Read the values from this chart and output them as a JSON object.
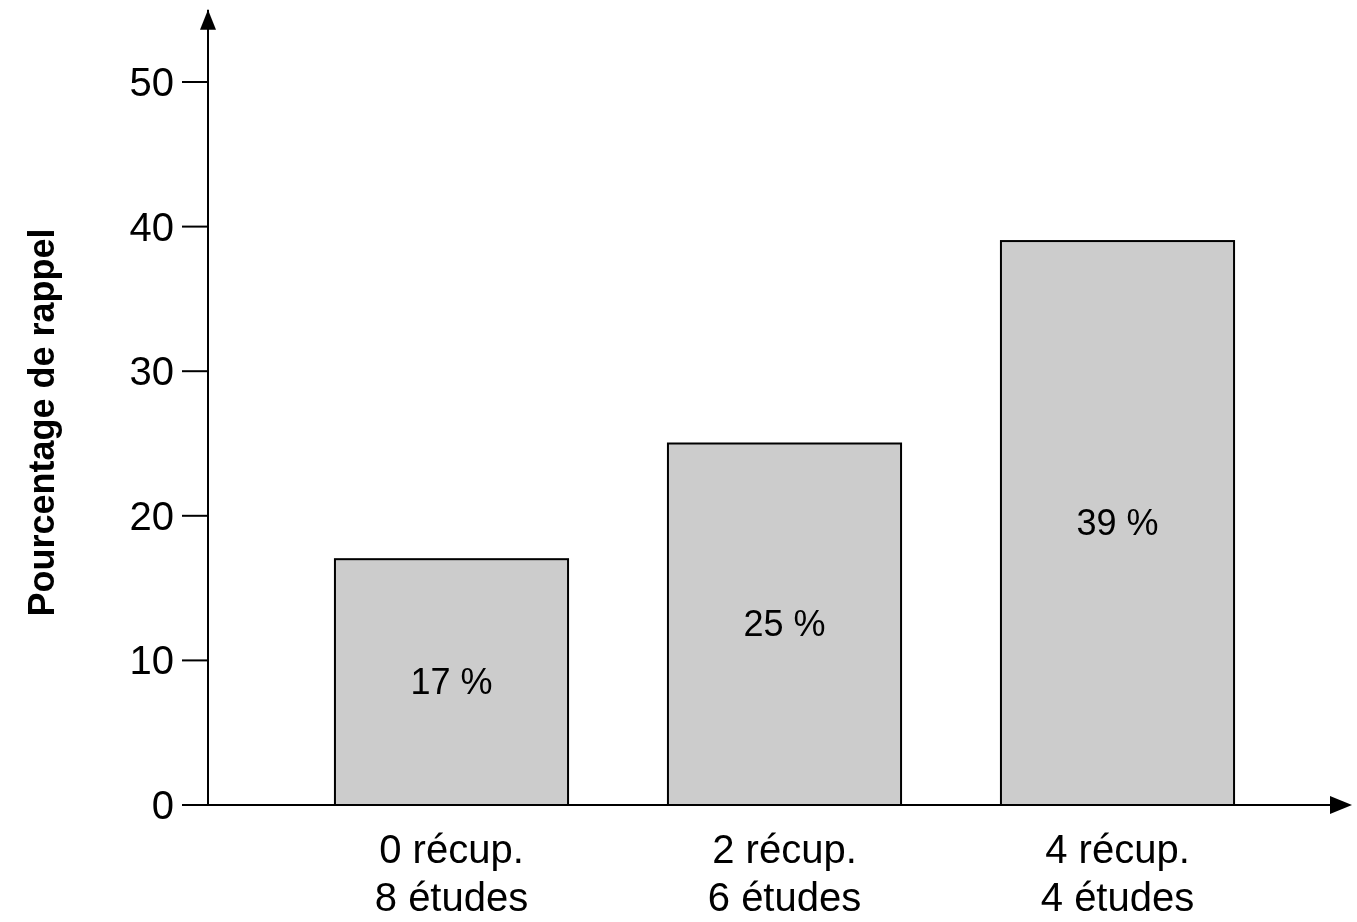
{
  "chart_data": {
    "type": "bar",
    "ylabel": "Pourcentage de rappel",
    "categories": [
      "0 récup.\n8 études",
      "2 récup.\n6 études",
      "4 récup.\n4 études"
    ],
    "values": [
      17,
      25,
      39
    ],
    "value_labels": [
      "17 %",
      "25 %",
      "39 %"
    ],
    "color": "#cccccc",
    "ylim": [
      0,
      55
    ],
    "yticks": [
      0,
      10,
      20,
      30,
      40,
      50
    ],
    "grid": false
  }
}
